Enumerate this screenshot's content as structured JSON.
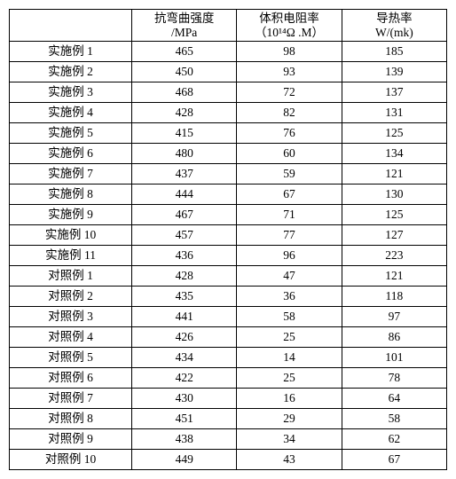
{
  "table": {
    "columns": [
      {
        "line1": "",
        "line2": ""
      },
      {
        "line1": "抗弯曲强度",
        "line2": "/MPa"
      },
      {
        "line1": "体积电阻率",
        "line2": "（10¹⁴Ω .M）"
      },
      {
        "line1": "导热率",
        "line2": "W/(mk)"
      }
    ],
    "rows": [
      {
        "label": "实施例 1",
        "v1": "465",
        "v2": "98",
        "v3": "185"
      },
      {
        "label": "实施例 2",
        "v1": "450",
        "v2": "93",
        "v3": "139"
      },
      {
        "label": "实施例 3",
        "v1": "468",
        "v2": "72",
        "v3": "137"
      },
      {
        "label": "实施例 4",
        "v1": "428",
        "v2": "82",
        "v3": "131"
      },
      {
        "label": "实施例 5",
        "v1": "415",
        "v2": "76",
        "v3": "125"
      },
      {
        "label": "实施例 6",
        "v1": "480",
        "v2": "60",
        "v3": "134"
      },
      {
        "label": "实施例 7",
        "v1": "437",
        "v2": "59",
        "v3": "121"
      },
      {
        "label": "实施例 8",
        "v1": "444",
        "v2": "67",
        "v3": "130"
      },
      {
        "label": "实施例 9",
        "v1": "467",
        "v2": "71",
        "v3": "125"
      },
      {
        "label": "实施例 10",
        "v1": "457",
        "v2": "77",
        "v3": "127"
      },
      {
        "label": "实施例 11",
        "v1": "436",
        "v2": "96",
        "v3": "223"
      },
      {
        "label": "对照例 1",
        "v1": "428",
        "v2": "47",
        "v3": "121"
      },
      {
        "label": "对照例 2",
        "v1": "435",
        "v2": "36",
        "v3": "118"
      },
      {
        "label": "对照例 3",
        "v1": "441",
        "v2": "58",
        "v3": "97"
      },
      {
        "label": "对照例 4",
        "v1": "426",
        "v2": "25",
        "v3": "86"
      },
      {
        "label": "对照例 5",
        "v1": "434",
        "v2": "14",
        "v3": "101"
      },
      {
        "label": "对照例 6",
        "v1": "422",
        "v2": "25",
        "v3": "78"
      },
      {
        "label": "对照例 7",
        "v1": "430",
        "v2": "16",
        "v3": "64"
      },
      {
        "label": "对照例 8",
        "v1": "451",
        "v2": "29",
        "v3": "58"
      },
      {
        "label": "对照例 9",
        "v1": "438",
        "v2": "34",
        "v3": "62"
      },
      {
        "label": "对照例 10",
        "v1": "449",
        "v2": "43",
        "v3": "67"
      }
    ],
    "style": {
      "background_color": "#ffffff",
      "border_color": "#000000",
      "text_color": "#000000",
      "font_size_pt": 10,
      "cell_align": "center",
      "col_widths_pct": [
        28,
        24,
        24,
        24
      ]
    }
  }
}
